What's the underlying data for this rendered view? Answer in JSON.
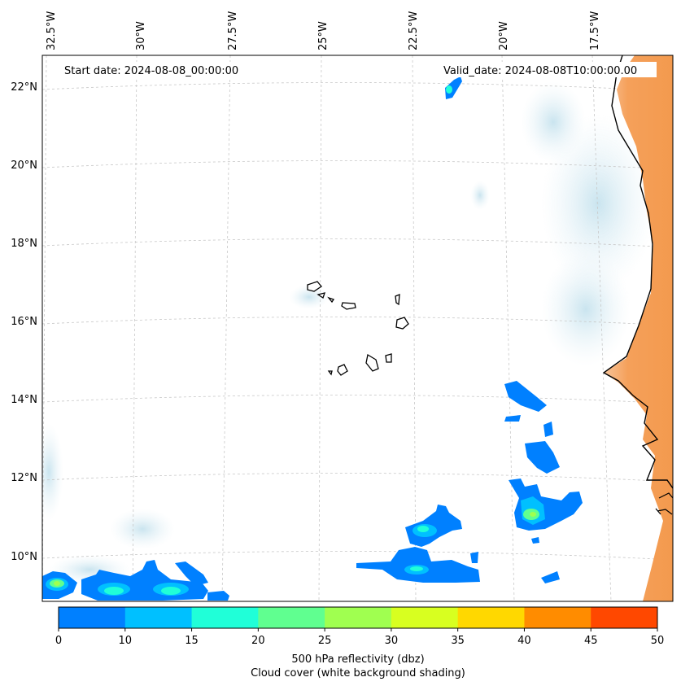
{
  "map": {
    "start_label": "Start date: 2024-08-08_00:00:00",
    "valid_label": "Valid_date: 2024-08-08T10:00:00.00",
    "lon_labels": [
      "32.5°W",
      "30°W",
      "27.5°W",
      "25°W",
      "22.5°W",
      "20°W",
      "17.5°W"
    ],
    "lat_labels": [
      "22°N",
      "20°N",
      "18°N",
      "16°N",
      "14°N",
      "12°N",
      "10°N"
    ]
  },
  "colorbar": {
    "ticks": [
      "0",
      "10",
      "15",
      "20",
      "25",
      "30",
      "35",
      "40",
      "45",
      "50"
    ],
    "colors": [
      "#0080ff",
      "#00c0ff",
      "#20ffd8",
      "#60ff90",
      "#a0ff50",
      "#d8ff20",
      "#ffd800",
      "#ff8c00",
      "#ff4800"
    ],
    "label_line1": "500 hPa reflectivity (dbz)",
    "label_line2": "Cloud cover (white background shading)"
  },
  "colors": {
    "land_orange": "#f5a05a",
    "cloud_blue": "#cde6f0",
    "refl_blue": "#0080ff"
  }
}
